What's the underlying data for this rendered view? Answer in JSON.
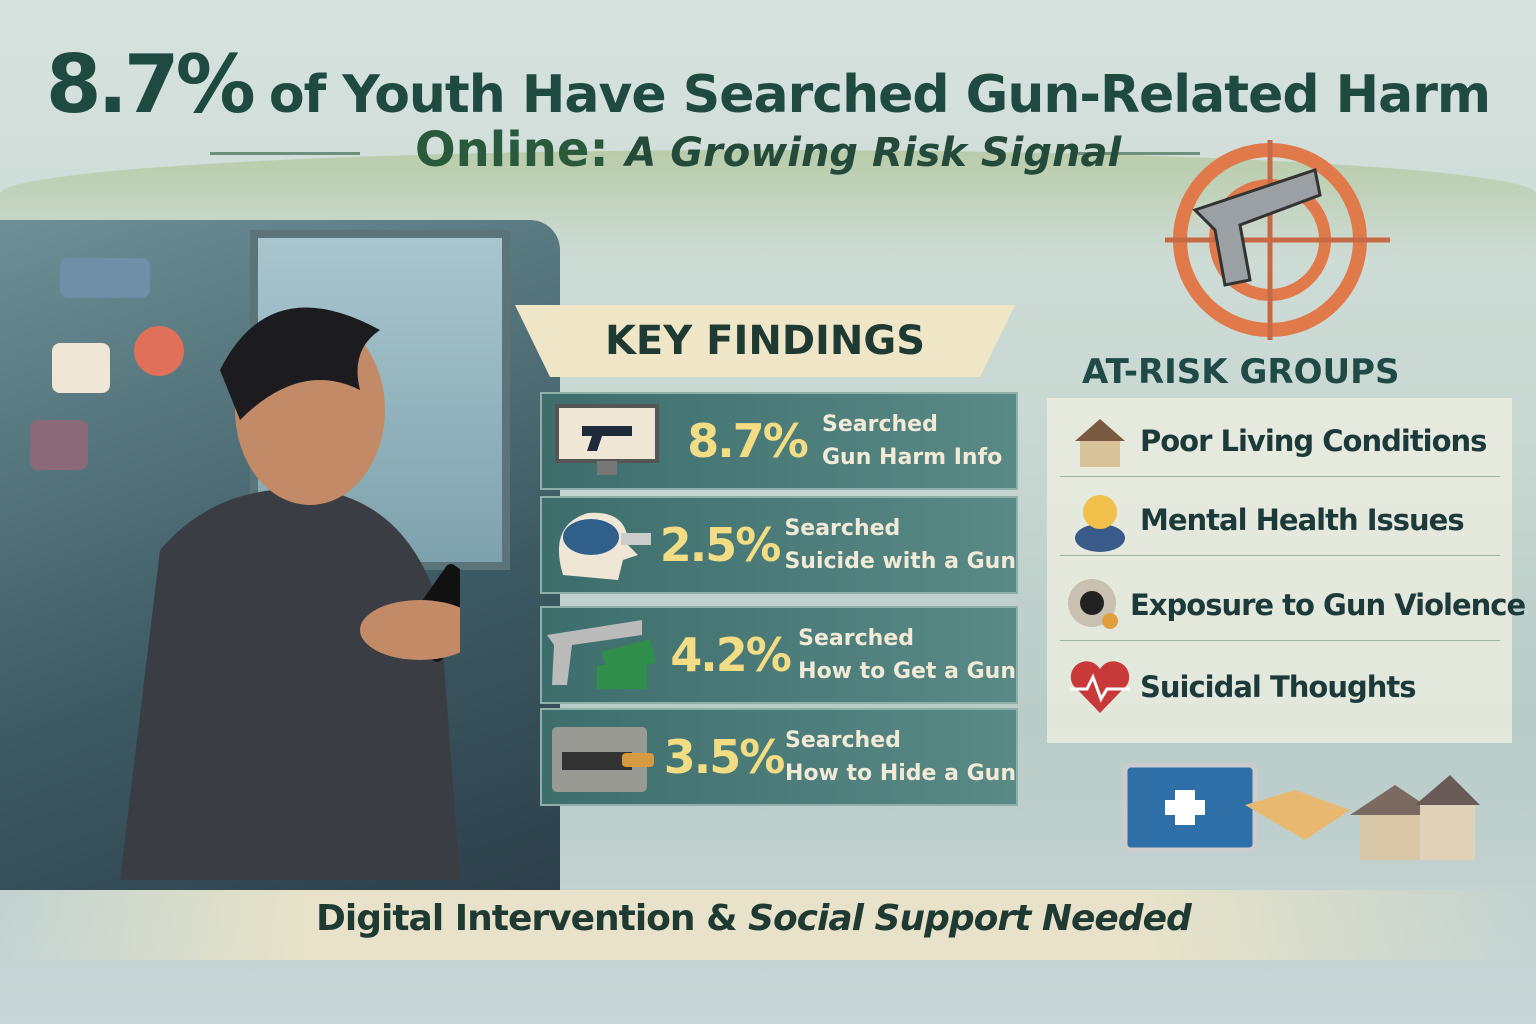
{
  "title": {
    "stat": "8.7%",
    "line1": "of Youth Have Searched Gun-Related Harm",
    "line2_main": "Online:",
    "line2_italic": "A Growing Risk Signal"
  },
  "key_findings": {
    "heading": "KEY FINDINGS",
    "items": [
      {
        "value": "8.7%",
        "label1": "Searched",
        "label2": "Gun Harm Info",
        "icon": "monitor-gun-icon"
      },
      {
        "value": "2.5%",
        "label1": "Searched",
        "label2": "Suicide with a Gun",
        "icon": "head-gun-icon"
      },
      {
        "value": "4.2%",
        "label1": "Searched",
        "label2": "How to Get a Gun",
        "icon": "gun-money-icon"
      },
      {
        "value": "3.5%",
        "label1": "Searched",
        "label2": "How to Hide a Gun",
        "icon": "hidden-drawer-icon"
      }
    ]
  },
  "at_risk": {
    "heading": "AT-RISK GROUPS",
    "items": [
      {
        "label": "Poor Living Conditions",
        "icon": "house-icon"
      },
      {
        "label": "Mental Health Issues",
        "icon": "worried-person-icon"
      },
      {
        "label": "Exposure to Gun Violence",
        "icon": "gun-violence-icon"
      },
      {
        "label": "Suicidal Thoughts",
        "icon": "heartbeat-icon"
      }
    ]
  },
  "footer": {
    "main": "Digital Intervention &",
    "italic": "Social Support Needed"
  },
  "colors": {
    "title": "#1f4a3f",
    "stat": "#f2dc84",
    "panel": "#3e6e6c",
    "target": "#e07a4a"
  }
}
